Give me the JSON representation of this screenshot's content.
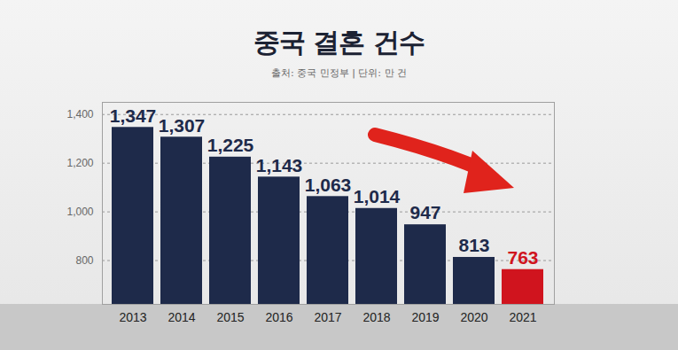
{
  "chart_data": {
    "type": "bar",
    "title": "중국 결혼 건수",
    "subtitle": "출처: 중국 민정부 | 단위: 만 건",
    "categories": [
      "2013",
      "2014",
      "2015",
      "2016",
      "2017",
      "2018",
      "2019",
      "2020",
      "2021"
    ],
    "values": [
      1347,
      1307,
      1225,
      1143,
      1063,
      1014,
      947,
      813,
      763
    ],
    "value_labels": [
      "1,347",
      "1,307",
      "1,225",
      "1,143",
      "1,063",
      "1,014",
      "947",
      "813",
      "763"
    ],
    "colors": [
      "#1e2a4a",
      "#1e2a4a",
      "#1e2a4a",
      "#1e2a4a",
      "#1e2a4a",
      "#1e2a4a",
      "#1e2a4a",
      "#1e2a4a",
      "#d0141e"
    ],
    "ylim": [
      620,
      1450
    ],
    "yticks": [
      800,
      {
        "value": 1000,
        "label": "1,000"
      },
      {
        "value": 1200,
        "label": "1,200"
      },
      {
        "value": 1400,
        "label": "1,400"
      }
    ],
    "grid": true,
    "data_labels": true
  }
}
